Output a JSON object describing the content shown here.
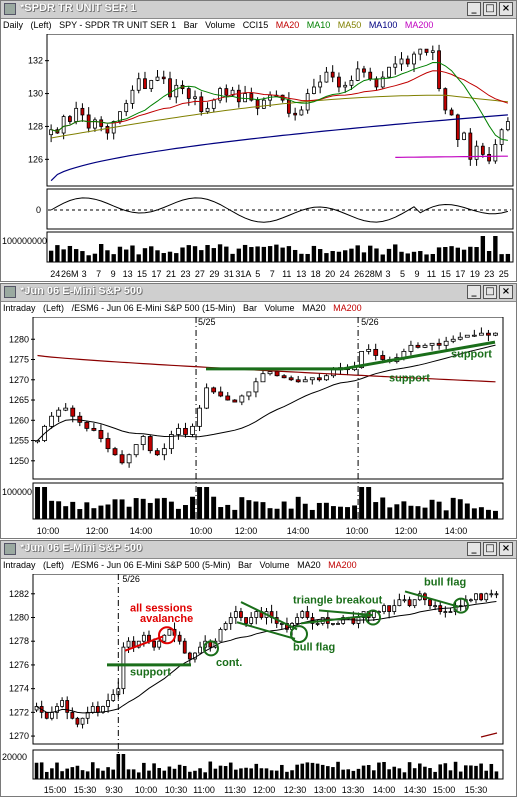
{
  "panel1": {
    "title": "*SPDR TR UNIT SER 1",
    "header": {
      "timeframe": "Daily",
      "position": "(Left)",
      "symbol_desc": "SPY - SPDR TR UNIT SER 1",
      "style": "Bar",
      "volume": "Volume",
      "ind1": "CCI15",
      "ma20": "MA20",
      "ma10": "MA10",
      "ma50": "MA50",
      "ma100": "MA100",
      "ma200": "MA200"
    },
    "cci_zero_label": "0",
    "volume_label": "100000000",
    "x_labels": [
      "24",
      "26M",
      "3",
      "7",
      "9",
      "13",
      "15",
      "17",
      "21",
      "23",
      "27",
      "29",
      "31",
      "31A",
      "5",
      "7",
      "11",
      "13",
      "18",
      "20",
      "24",
      "26",
      "28M",
      "3",
      "5",
      "9",
      "11",
      "15",
      "17",
      "19",
      "23",
      "25"
    ]
  },
  "panel2": {
    "title": "*Jun 06  E-Mini S&P 500",
    "header": {
      "timeframe": "Intraday",
      "position": "(Left)",
      "symbol_desc": "/ESM6 - Jun 06  E-Mini S&P 500  (15-Min)",
      "style": "Bar",
      "volume": "Volume",
      "ma20": "MA20",
      "ma200": "MA200"
    },
    "date_markers": [
      "5/25",
      "5/26"
    ],
    "volume_label": "100000",
    "x_labels": [
      "10:00",
      "12:00",
      "14:00",
      "10:00",
      "12:00",
      "14:00",
      "10:00",
      "12:00",
      "14:00"
    ],
    "annotations": {
      "support1": "support",
      "support2": "support"
    }
  },
  "panel3": {
    "title": "*Jun 06  E-Mini S&P 500",
    "header": {
      "timeframe": "Intraday",
      "position": "(Left)",
      "symbol_desc": "/ESM6 - Jun 06  E-Mini S&P 500  (5-Min)",
      "style": "Bar",
      "volume": "Volume",
      "ma20": "MA20",
      "ma200": "MA200"
    },
    "date_marker": "5/26",
    "volume_label": "20000",
    "x_labels": [
      "15:00",
      "15:30",
      "9:30",
      "10:00",
      "10:30",
      "11:00",
      "11:30",
      "12:00",
      "12:30",
      "13:00",
      "13:30",
      "14:00",
      "14:30",
      "15:00",
      "15:30"
    ],
    "annotations": {
      "avalanche_line1": "all sessions",
      "avalanche_line2": "avalanche",
      "support": "support",
      "cont": "cont.",
      "bull_flag1": "bull flag",
      "triangle": "triangle breakout",
      "bull_flag2": "bull flag"
    }
  },
  "colors": {
    "ma20": "#c00000",
    "ma10": "#008000",
    "ma50": "#808000",
    "ma100": "#000080",
    "ma200": "#c000c0",
    "annotation_green": "#1a6e1a",
    "annotation_red": "#e00000"
  },
  "chart_data": [
    {
      "type": "candlestick",
      "title": "SPY - SPDR TR UNIT SER 1",
      "ylim": [
        124.5,
        133.5
      ],
      "y_ticks": [
        126,
        128,
        130,
        132
      ],
      "closes": [
        127.8,
        127.6,
        128.6,
        128.3,
        129.1,
        128.7,
        127.9,
        128.4,
        128.0,
        127.6,
        128.3,
        128.9,
        129.4,
        130.2,
        130.9,
        130.3,
        130.8,
        131.0,
        130.9,
        129.8,
        130.5,
        130.3,
        129.7,
        129.8,
        128.9,
        129.1,
        129.6,
        130.3,
        129.9,
        130.2,
        129.5,
        130.0,
        129.6,
        129.1,
        129.6,
        129.9,
        129.9,
        129.6,
        128.8,
        128.7,
        129.0,
        130.0,
        130.4,
        130.7,
        131.3,
        131.0,
        130.4,
        130.5,
        130.8,
        131.5,
        131.3,
        130.9,
        130.4,
        131.0,
        131.6,
        131.8,
        132.1,
        131.8,
        132.4,
        132.7,
        132.5,
        132.6,
        130.3,
        129.0,
        128.7,
        127.2,
        127.6,
        126.0,
        126.8,
        126.3,
        125.9,
        126.9,
        127.8,
        128.3
      ]
    },
    {
      "type": "candlestick",
      "title": "/ESM6 - Jun 06 E-Mini S&P 500 (15-Min)",
      "ylim": [
        1246,
        1285
      ],
      "y_ticks": [
        1250,
        1255,
        1260,
        1265,
        1270,
        1275,
        1280
      ],
      "closes": [
        1255.0,
        1258.5,
        1261.0,
        1262.5,
        1263.0,
        1261.0,
        1259.5,
        1258.0,
        1257.5,
        1255.5,
        1253.0,
        1251.5,
        1249.5,
        1251.5,
        1254.0,
        1256.0,
        1252.5,
        1251.5,
        1253.0,
        1256.5,
        1258.0,
        1256.5,
        1258.5,
        1263.0,
        1268.0,
        1267.0,
        1266.0,
        1265.0,
        1264.5,
        1266.0,
        1267.0,
        1269.5,
        1271.5,
        1272.0,
        1271.0,
        1270.5,
        1270.0,
        1269.5,
        1270.0,
        1270.5,
        1270.0,
        1271.0,
        1272.5,
        1273.0,
        1272.5,
        1273.0,
        1277.0,
        1277.5,
        1276.0,
        1275.0,
        1274.5,
        1275.5,
        1277.0,
        1278.5,
        1278.0,
        1278.5,
        1279.0,
        1278.5,
        1279.5,
        1280.0,
        1280.5,
        1281.0,
        1281.0,
        1281.5,
        1281.0,
        1281.5
      ]
    },
    {
      "type": "candlestick",
      "title": "/ESM6 - Jun 06 E-Mini S&P 500 (5-Min)",
      "ylim": [
        1269.5,
        1283.5
      ],
      "y_ticks": [
        1270,
        1272,
        1274,
        1276,
        1278,
        1280,
        1282
      ],
      "closes": [
        1272.5,
        1272.0,
        1271.5,
        1272.0,
        1272.5,
        1273.0,
        1272.0,
        1271.5,
        1271.0,
        1271.5,
        1272.0,
        1272.5,
        1272.0,
        1272.5,
        1273.0,
        1273.5,
        1274.0,
        1277.5,
        1278.0,
        1277.5,
        1278.0,
        1278.5,
        1278.0,
        1277.5,
        1278.0,
        1278.5,
        1279.0,
        1278.5,
        1278.0,
        1277.0,
        1276.5,
        1277.0,
        1277.5,
        1278.0,
        1277.5,
        1278.0,
        1279.0,
        1279.5,
        1280.0,
        1280.5,
        1280.0,
        1279.5,
        1280.0,
        1280.5,
        1280.0,
        1280.5,
        1280.0,
        1279.5,
        1279.5,
        1279.0,
        1279.5,
        1280.0,
        1280.5,
        1280.0,
        1279.5,
        1279.5,
        1280.0,
        1279.5,
        1279.5,
        1279.5,
        1280.0,
        1280.0,
        1279.5,
        1280.0,
        1280.5,
        1280.0,
        1280.5,
        1280.5,
        1281.0,
        1280.5,
        1281.0,
        1281.5,
        1281.5,
        1281.0,
        1281.5,
        1282.0,
        1281.5,
        1281.0,
        1281.0,
        1280.5,
        1280.5,
        1280.5,
        1281.0,
        1281.0,
        1281.5,
        1281.5,
        1282.0,
        1281.5,
        1282.0,
        1282.0,
        1282.0
      ]
    }
  ]
}
